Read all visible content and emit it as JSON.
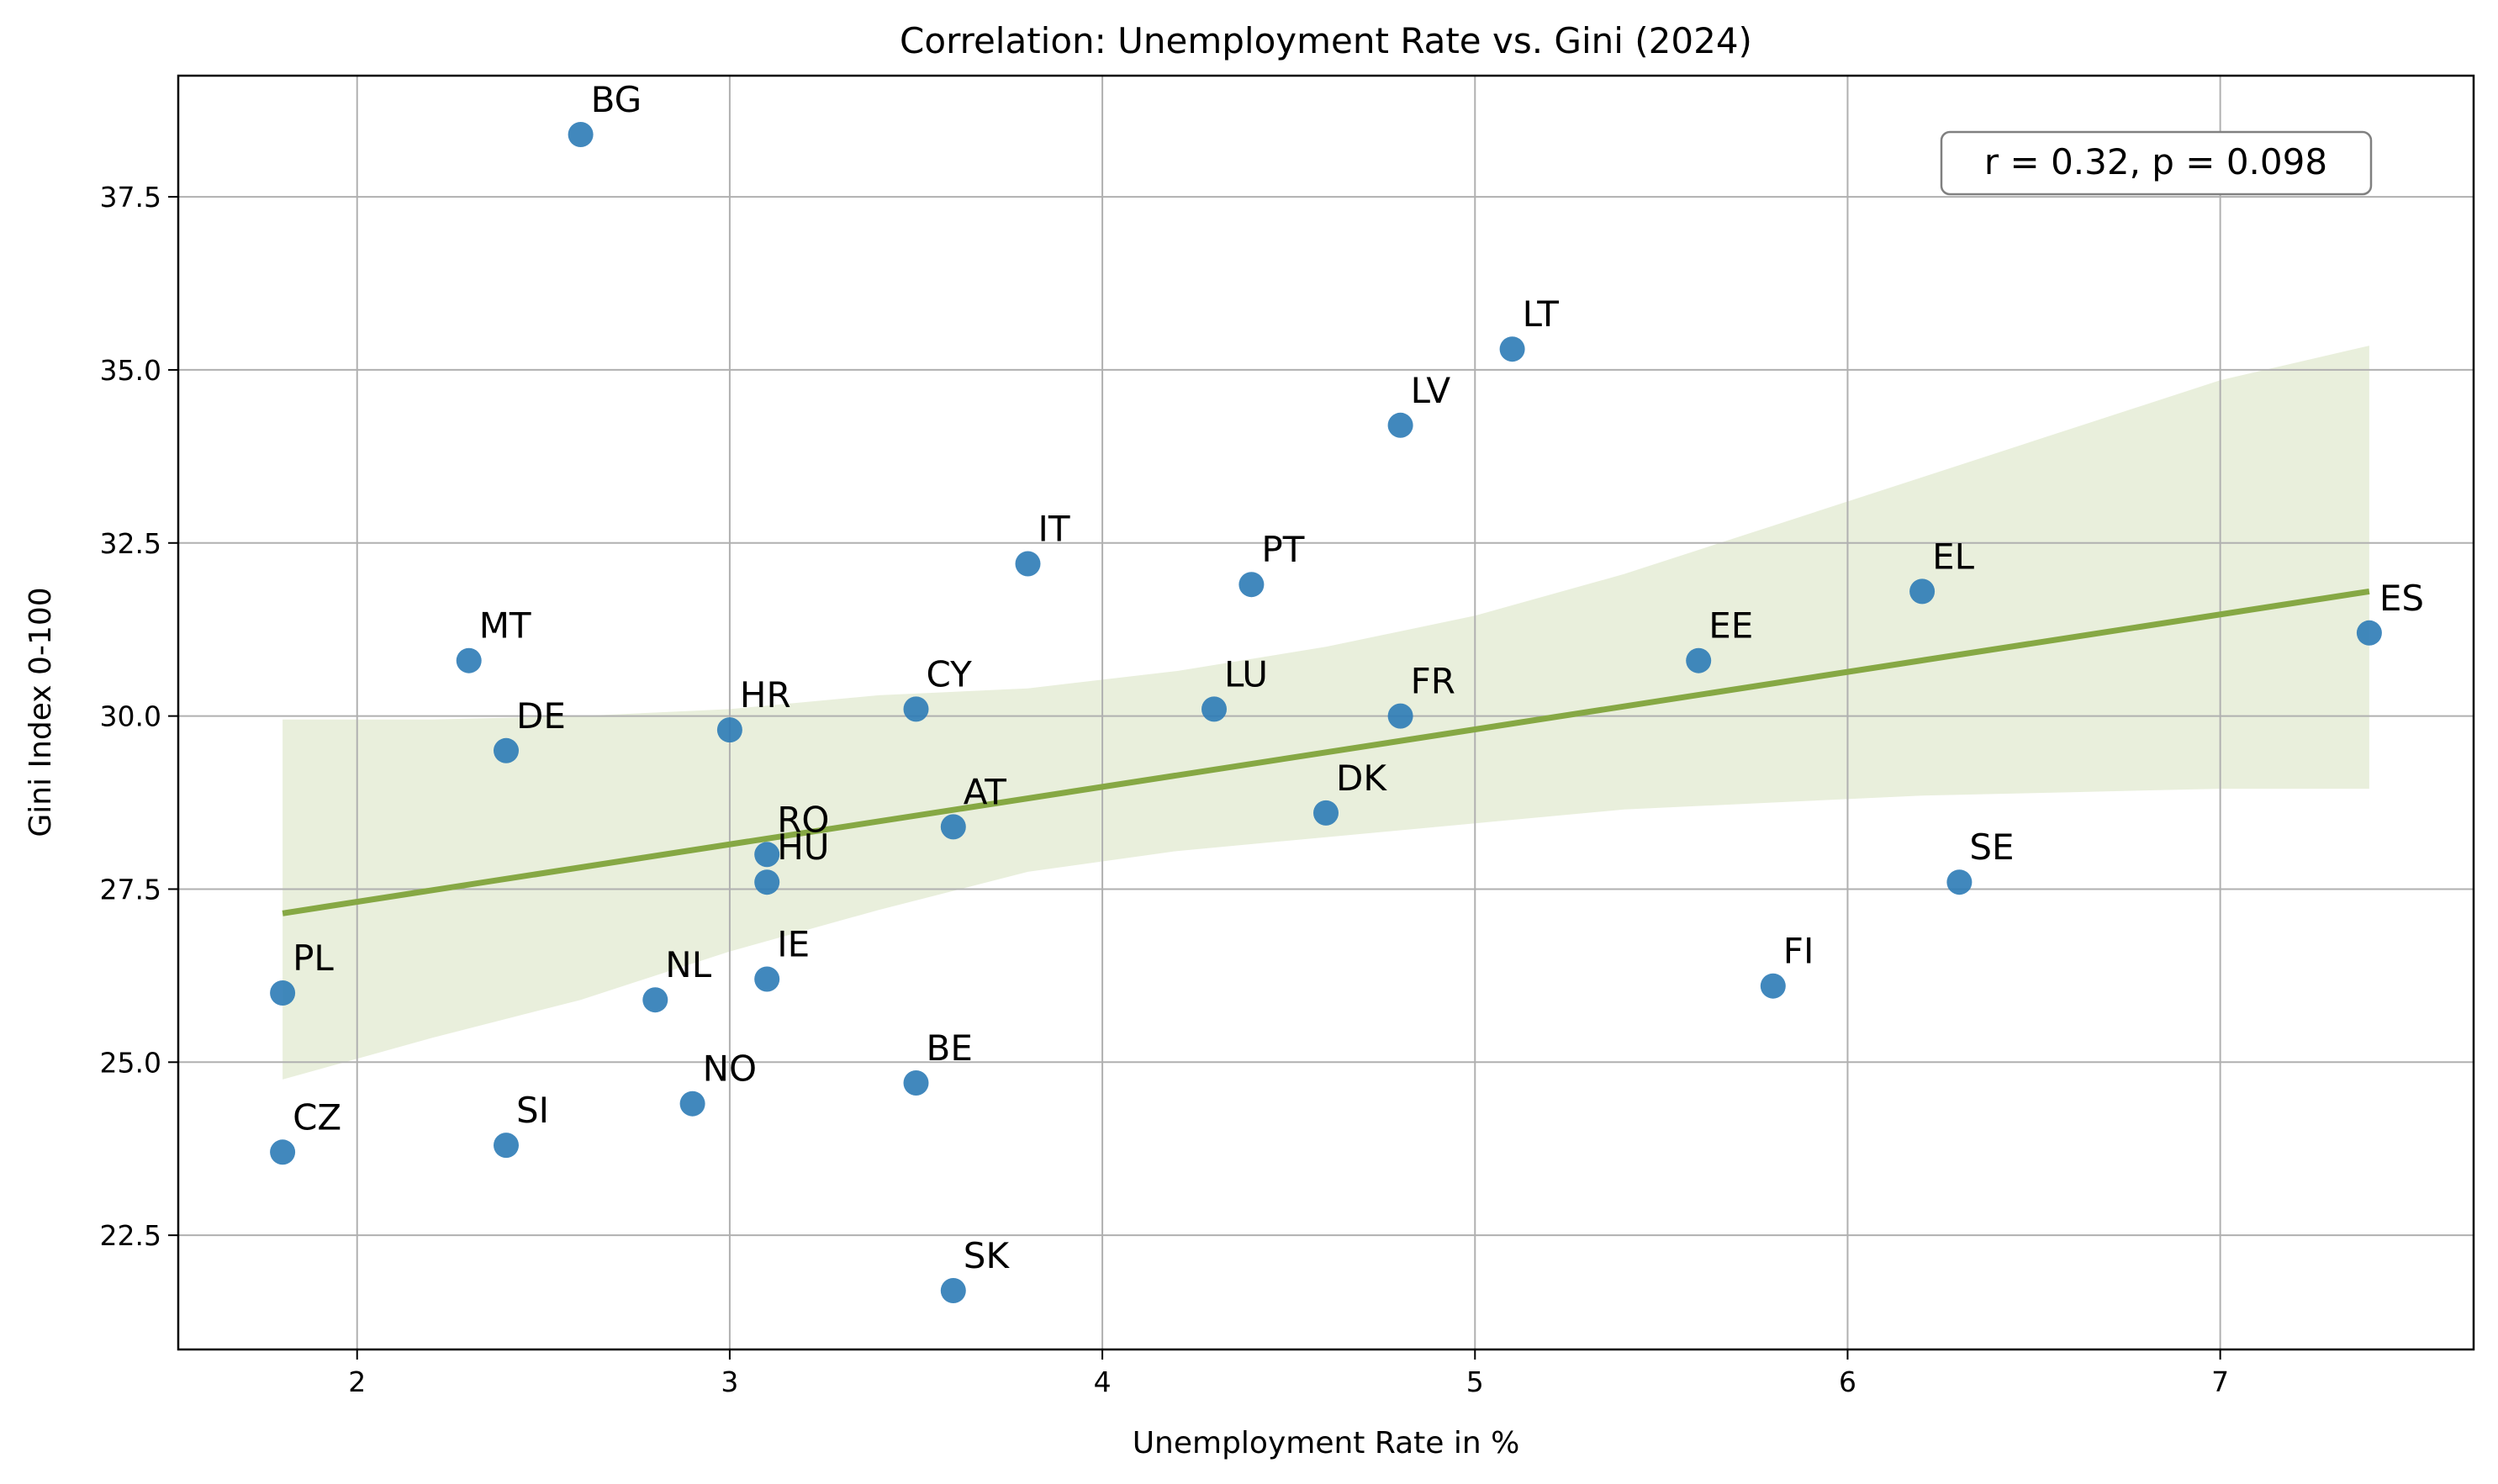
{
  "chart_data": {
    "type": "scatter",
    "title": "Correlation: Unemployment Rate vs. Gini (2024)",
    "xlabel": "Unemployment Rate in %",
    "ylabel": "Gini Index 0-100",
    "xlim": [
      1.52,
      7.68
    ],
    "ylim": [
      20.85,
      39.25
    ],
    "xticks": [
      {
        "value": 2,
        "label": "2"
      },
      {
        "value": 3,
        "label": "3"
      },
      {
        "value": 4,
        "label": "4"
      },
      {
        "value": 5,
        "label": "5"
      },
      {
        "value": 6,
        "label": "6"
      },
      {
        "value": 7,
        "label": "7"
      }
    ],
    "yticks": [
      {
        "value": 22.5,
        "label": "22.5"
      },
      {
        "value": 25.0,
        "label": "25.0"
      },
      {
        "value": 27.5,
        "label": "27.5"
      },
      {
        "value": 30.0,
        "label": "30.0"
      },
      {
        "value": 32.5,
        "label": "32.5"
      },
      {
        "value": 35.0,
        "label": "35.0"
      },
      {
        "value": 37.5,
        "label": "37.5"
      }
    ],
    "grid": true,
    "points": [
      {
        "label": "BG",
        "x": 2.6,
        "y": 38.4
      },
      {
        "label": "LT",
        "x": 5.1,
        "y": 35.3
      },
      {
        "label": "LV",
        "x": 4.8,
        "y": 34.2
      },
      {
        "label": "IT",
        "x": 3.8,
        "y": 32.2
      },
      {
        "label": "PT",
        "x": 4.4,
        "y": 31.9
      },
      {
        "label": "EL",
        "x": 6.2,
        "y": 31.8
      },
      {
        "label": "ES",
        "x": 7.4,
        "y": 31.2
      },
      {
        "label": "MT",
        "x": 2.3,
        "y": 30.8
      },
      {
        "label": "EE",
        "x": 5.6,
        "y": 30.8
      },
      {
        "label": "CY",
        "x": 3.5,
        "y": 30.1
      },
      {
        "label": "LU",
        "x": 4.3,
        "y": 30.1
      },
      {
        "label": "FR",
        "x": 4.8,
        "y": 30.0
      },
      {
        "label": "HR",
        "x": 3.0,
        "y": 29.8
      },
      {
        "label": "DE",
        "x": 2.4,
        "y": 29.5
      },
      {
        "label": "DK",
        "x": 4.6,
        "y": 28.6
      },
      {
        "label": "AT",
        "x": 3.6,
        "y": 28.4
      },
      {
        "label": "RO",
        "x": 3.1,
        "y": 28.0
      },
      {
        "label": "HU",
        "x": 3.1,
        "y": 27.6
      },
      {
        "label": "SE",
        "x": 6.3,
        "y": 27.6
      },
      {
        "label": "IE",
        "x": 3.1,
        "y": 26.2
      },
      {
        "label": "FI",
        "x": 5.8,
        "y": 26.1
      },
      {
        "label": "PL",
        "x": 1.8,
        "y": 26.0
      },
      {
        "label": "NL",
        "x": 2.8,
        "y": 25.9
      },
      {
        "label": "BE",
        "x": 3.5,
        "y": 24.7
      },
      {
        "label": "NO",
        "x": 2.9,
        "y": 24.4
      },
      {
        "label": "SI",
        "x": 2.4,
        "y": 23.8
      },
      {
        "label": "CZ",
        "x": 1.8,
        "y": 23.7
      },
      {
        "label": "SK",
        "x": 3.6,
        "y": 21.7
      }
    ],
    "regression": {
      "x": [
        1.8,
        7.4
      ],
      "y": [
        27.15,
        31.8
      ]
    },
    "confidence_band": {
      "x": [
        1.8,
        2.2,
        2.6,
        3.0,
        3.4,
        3.8,
        4.2,
        4.6,
        5.0,
        5.4,
        5.8,
        6.2,
        6.6,
        7.0,
        7.4
      ],
      "lower": [
        24.75,
        25.35,
        25.9,
        26.6,
        27.2,
        27.75,
        28.05,
        28.25,
        28.45,
        28.65,
        28.75,
        28.85,
        28.9,
        28.95,
        28.95
      ],
      "upper": [
        29.95,
        29.95,
        30.0,
        30.1,
        30.3,
        30.4,
        30.65,
        31.0,
        31.45,
        32.05,
        32.75,
        33.45,
        34.15,
        34.85,
        35.35
      ]
    },
    "annotation": "r = 0.32, p = 0.098",
    "colors": {
      "points": "#2c7bb6",
      "regression": "#86a844",
      "band": "#e9efdc"
    }
  }
}
